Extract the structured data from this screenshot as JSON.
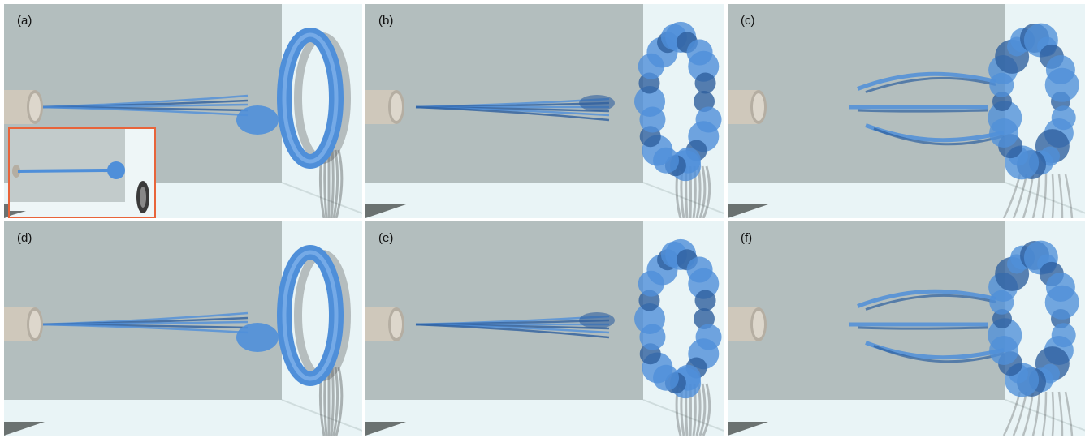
{
  "figure": {
    "panels": [
      {
        "label": "(a)",
        "style": "ring",
        "inset": true
      },
      {
        "label": "(b)",
        "style": "turbulent",
        "inset": false
      },
      {
        "label": "(c)",
        "style": "branched",
        "inset": false
      },
      {
        "label": "(d)",
        "style": "ring",
        "inset": false
      },
      {
        "label": "(e)",
        "style": "turbulent",
        "inset": false
      },
      {
        "label": "(f)",
        "style": "branched",
        "inset": false
      }
    ],
    "colors": {
      "smoke_blue": "#4f8fd9",
      "smoke_dark": "#2e5f9e",
      "wall_gray": "#b3bebe",
      "background": "#e9f4f6",
      "nozzle": "#cfc8bb",
      "inset_border": "#e8643a"
    }
  }
}
